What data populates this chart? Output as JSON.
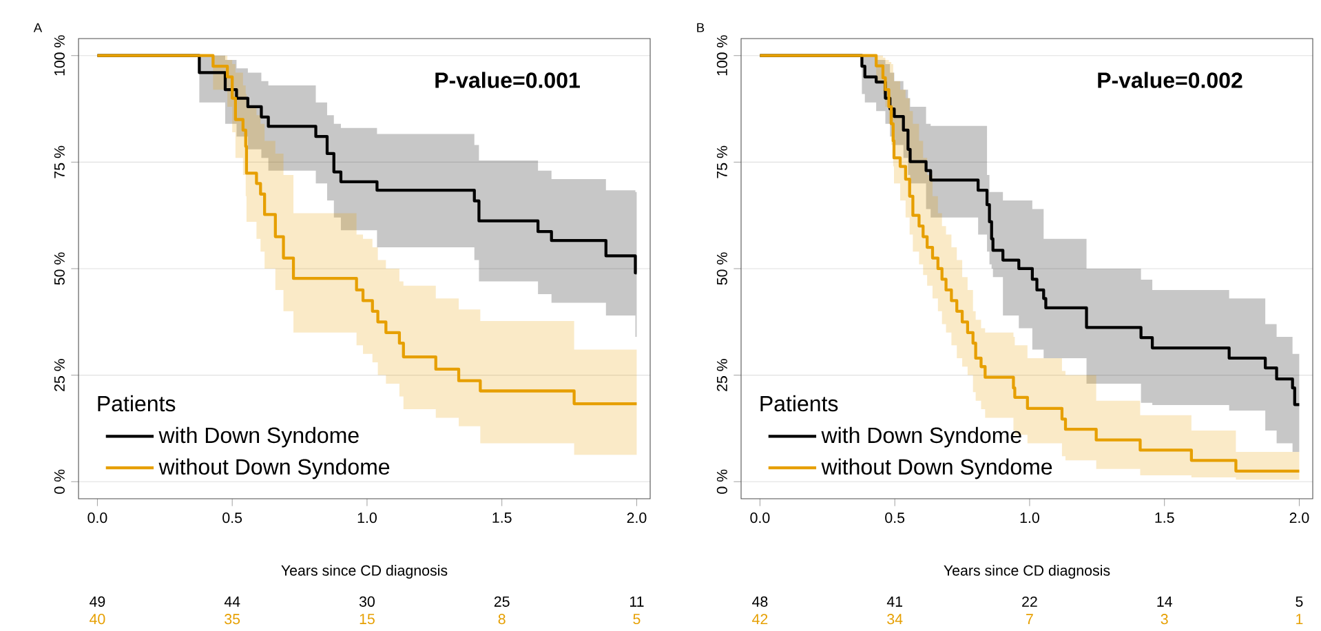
{
  "chart_data": [
    {
      "type": "step",
      "title": "A",
      "xlabel": "Years since CD diagnosis",
      "legend_title": "Patients",
      "legend": "bottom left",
      "grid": "y",
      "xlim": [
        -0.07,
        2.05
      ],
      "ylim": [
        -4,
        104
      ],
      "xticks": [
        {
          "value": 0,
          "label": "0.0"
        },
        {
          "value": 0.5,
          "label": "0.5"
        },
        {
          "value": 1,
          "label": "1.0"
        },
        {
          "value": 1.5,
          "label": "1.5"
        },
        {
          "value": 2,
          "label": "2.0"
        }
      ],
      "yticks": [
        {
          "value": 0,
          "label": "0 %"
        },
        {
          "value": 25,
          "label": "25 %"
        },
        {
          "value": 50,
          "label": "50 %"
        },
        {
          "value": 75,
          "label": "75 %"
        },
        {
          "value": 100,
          "label": "100 %"
        }
      ],
      "annotations": [
        "P-value=0.001",
        "49",
        "44",
        "30",
        "25",
        "11",
        "40",
        "35",
        "15",
        "8",
        "5"
      ],
      "series": [
        {
          "name": "with Down Syndome",
          "color": "#000000",
          "x": [
            0,
            0.378,
            0.474,
            0.516,
            0.558,
            0.608,
            0.634,
            0.81,
            0.852,
            0.877,
            0.903,
            1.037,
            1.398,
            1.415,
            1.634,
            1.684,
            1.886,
            1.995,
            2.0
          ],
          "values": [
            100,
            96,
            92,
            90,
            88,
            85.6,
            83.4,
            81,
            77,
            72.7,
            70.4,
            68.4,
            65.9,
            61.2,
            58.7,
            56.6,
            53,
            49,
            49
          ],
          "lower": [
            100,
            89,
            84,
            81,
            78,
            76,
            73,
            70,
            66,
            62,
            59,
            55,
            52,
            47,
            44,
            42,
            39,
            34,
            34
          ],
          "upper": [
            100,
            100,
            99,
            97,
            96,
            94,
            93,
            89,
            86,
            84,
            83,
            81.6,
            79,
            75.4,
            73,
            71,
            68.4,
            68,
            68
          ]
        },
        {
          "name": "without Down Syndome",
          "color": "#e69f00",
          "x": [
            0,
            0.429,
            0.482,
            0.5,
            0.512,
            0.54,
            0.55,
            0.553,
            0.59,
            0.605,
            0.62,
            0.66,
            0.69,
            0.727,
            0.961,
            0.985,
            1.02,
            1.04,
            1.07,
            1.12,
            1.135,
            1.255,
            1.34,
            1.42,
            1.768,
            2.0
          ],
          "values": [
            100,
            97.5,
            95,
            90,
            85,
            82.5,
            78.7,
            72.4,
            70,
            67.5,
            62.7,
            57.5,
            52.5,
            47.7,
            45,
            42.5,
            40,
            37.5,
            35,
            32.5,
            29.3,
            26.4,
            23.7,
            21.3,
            18.3,
            18.3
          ],
          "lower": [
            100,
            92,
            88,
            82,
            76,
            72,
            67,
            61,
            57,
            54,
            50,
            45,
            40,
            35,
            32,
            30,
            28,
            25,
            23,
            20,
            17,
            15,
            13,
            9,
            6.3,
            6.3
          ],
          "upper": [
            100,
            100,
            99,
            98,
            96,
            93,
            91,
            88,
            86,
            84,
            80,
            77,
            72,
            63,
            58,
            57,
            55,
            52,
            50,
            47,
            46,
            43,
            40.4,
            37.7,
            31,
            31
          ]
        }
      ]
    },
    {
      "type": "step",
      "title": "B",
      "xlabel": "Years since CD diagnosis",
      "legend_title": "Patients",
      "legend": "bottom left",
      "grid": "y",
      "xlim": [
        -0.07,
        2.05
      ],
      "ylim": [
        -4,
        104
      ],
      "xticks": [
        {
          "value": 0,
          "label": "0.0"
        },
        {
          "value": 0.5,
          "label": "0.5"
        },
        {
          "value": 1,
          "label": "1.0"
        },
        {
          "value": 1.5,
          "label": "1.5"
        },
        {
          "value": 2,
          "label": "2.0"
        }
      ],
      "yticks": [
        {
          "value": 0,
          "label": "0 %"
        },
        {
          "value": 25,
          "label": "25 %"
        },
        {
          "value": 50,
          "label": "50 %"
        },
        {
          "value": 75,
          "label": "75 %"
        },
        {
          "value": 100,
          "label": "100 %"
        }
      ],
      "annotations": [
        "P-value=0.002",
        "48",
        "41",
        "22",
        "14",
        "5",
        "42",
        "34",
        "7",
        "3",
        "1"
      ],
      "series": [
        {
          "name": "with Down Syndome",
          "color": "#000000",
          "x": [
            0,
            0.378,
            0.389,
            0.431,
            0.465,
            0.482,
            0.498,
            0.532,
            0.549,
            0.557,
            0.616,
            0.633,
            0.809,
            0.842,
            0.851,
            0.859,
            0.864,
            0.901,
            0.96,
            1.01,
            1.027,
            1.052,
            1.06,
            1.211,
            1.413,
            1.455,
            1.74,
            1.874,
            1.916,
            1.975,
            1.983,
            2.0
          ],
          "values": [
            100,
            97.5,
            95,
            93.8,
            90,
            87.5,
            85.7,
            82.5,
            78,
            75.1,
            73,
            70.8,
            68.4,
            65,
            61,
            57,
            54.3,
            52,
            50,
            47.5,
            45,
            43,
            40.8,
            36.2,
            33.8,
            31.4,
            29,
            26.7,
            24.1,
            22,
            18.1,
            18.1
          ],
          "lower": [
            100,
            91,
            89,
            87,
            84,
            81,
            79,
            76,
            72,
            70,
            64,
            62,
            58,
            54,
            51,
            50,
            48,
            39,
            36,
            31,
            31,
            29,
            29,
            23,
            18.5,
            18,
            16.7,
            12,
            9,
            7,
            7,
            7
          ],
          "upper": [
            100,
            100,
            100,
            99,
            98,
            96,
            94,
            92,
            90,
            88,
            84,
            83.5,
            83.5,
            72,
            68,
            68,
            68,
            66,
            66,
            64,
            64,
            57,
            57,
            50,
            47.4,
            45,
            43,
            37,
            34,
            30,
            30,
            30
          ]
        },
        {
          "name": "without Down Syndome",
          "color": "#e69f00",
          "x": [
            0,
            0.431,
            0.456,
            0.465,
            0.478,
            0.487,
            0.494,
            0.497,
            0.52,
            0.54,
            0.555,
            0.567,
            0.59,
            0.605,
            0.62,
            0.64,
            0.66,
            0.675,
            0.69,
            0.71,
            0.73,
            0.75,
            0.77,
            0.79,
            0.8,
            0.82,
            0.835,
            0.94,
            0.945,
            0.992,
            1.12,
            1.133,
            1.247,
            1.41,
            1.6,
            1.765,
            2.0
          ],
          "values": [
            100,
            97.6,
            94.8,
            92,
            88,
            84,
            80,
            76,
            74,
            71,
            67,
            62.5,
            60,
            57.5,
            55,
            52.5,
            50,
            47.5,
            45,
            42.5,
            40,
            37.5,
            35,
            32.5,
            29,
            27,
            24.5,
            22,
            19.8,
            17.2,
            14.7,
            12.3,
            9.8,
            7.4,
            5,
            2.5,
            2.5
          ],
          "lower": [
            100,
            94,
            91,
            88,
            84,
            79,
            74,
            70,
            66,
            62,
            58,
            54,
            51,
            48.5,
            46,
            43,
            40,
            37,
            35,
            32,
            29,
            27,
            25,
            21,
            19,
            17,
            15,
            12,
            11,
            9,
            6,
            5,
            3,
            1.5,
            1,
            0.5,
            0.5
          ],
          "upper": [
            100,
            100,
            99.5,
            99,
            98.5,
            98,
            96,
            94,
            92,
            90,
            87,
            84,
            80,
            76,
            72,
            67,
            63,
            60,
            58,
            55,
            52,
            48,
            45,
            40,
            38,
            36,
            35,
            34,
            32,
            29,
            26,
            25,
            19,
            15.6,
            12,
            7,
            7
          ]
        }
      ]
    }
  ]
}
